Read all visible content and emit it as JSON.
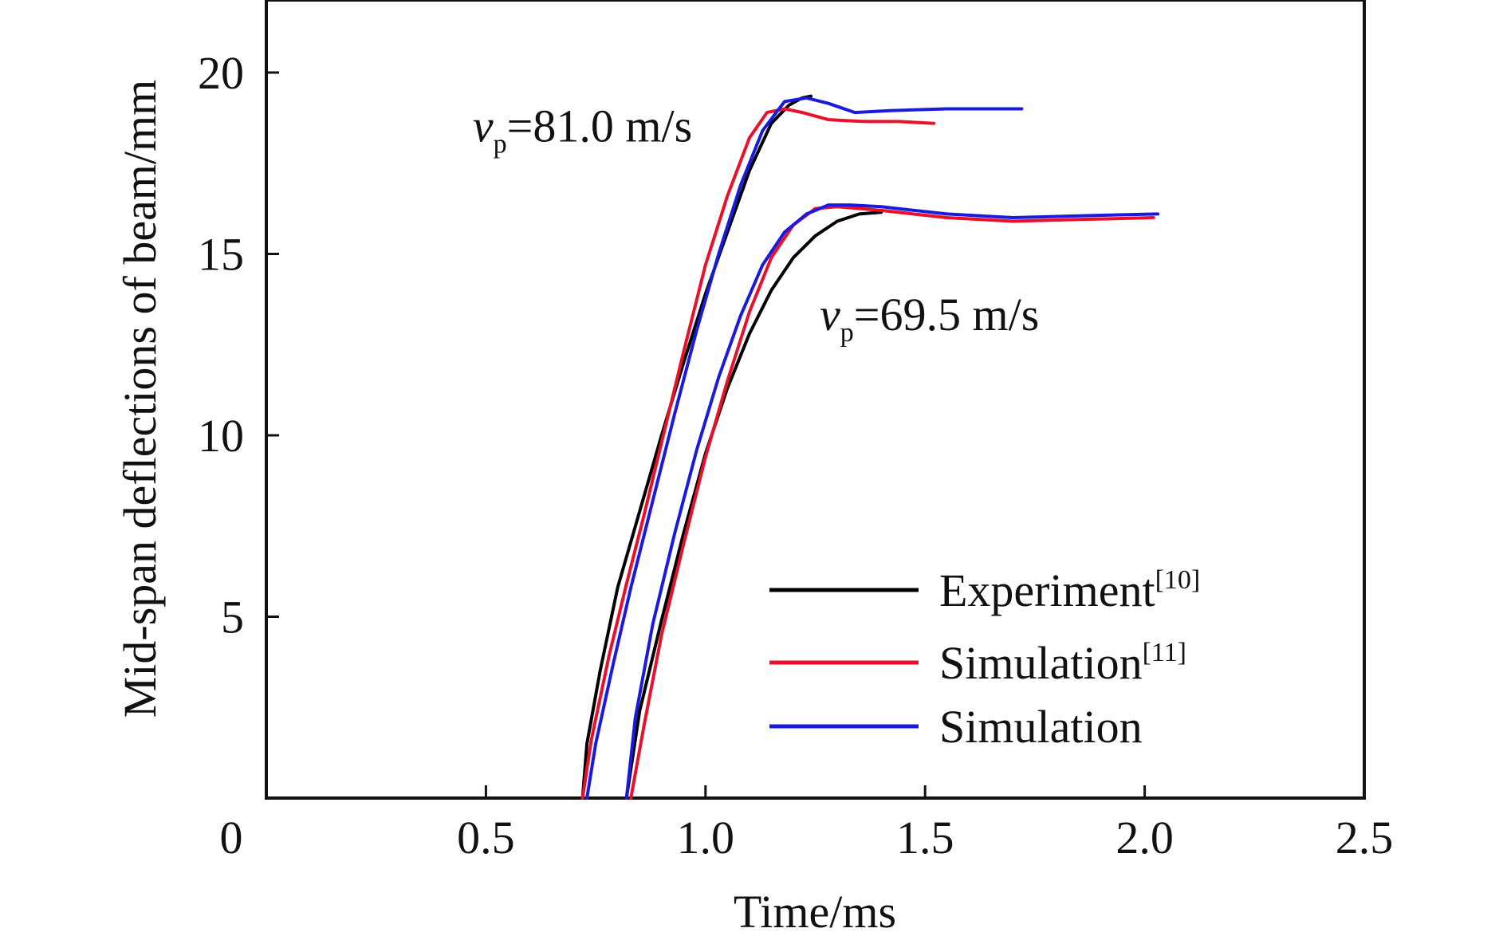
{
  "chart_data": {
    "type": "line",
    "title": "",
    "xlabel": "Time/ms",
    "ylabel": "Mid-span deflections of beam/mm",
    "xlim": [
      0,
      2.5
    ],
    "ylim": [
      0,
      22
    ],
    "grid": false,
    "x_ticks": [
      {
        "value": 0,
        "label": "0"
      },
      {
        "value": 0.5,
        "label": "0.5"
      },
      {
        "value": 1.0,
        "label": "1.0"
      },
      {
        "value": 1.5,
        "label": "1.5"
      },
      {
        "value": 2.0,
        "label": "2.0"
      },
      {
        "value": 2.5,
        "label": "2.5"
      }
    ],
    "y_ticks": [
      {
        "value": 5,
        "label": "5"
      },
      {
        "value": 10,
        "label": "10"
      },
      {
        "value": 15,
        "label": "15"
      },
      {
        "value": 20,
        "label": "20"
      }
    ],
    "legend": {
      "placement": "bottom-right",
      "entries": [
        {
          "name": "Experiment",
          "ref": "[10]",
          "color": "#000000"
        },
        {
          "name": "Simulation",
          "ref": "[11]",
          "color": "#e8102a"
        },
        {
          "name": "Simulation",
          "ref": "",
          "color": "#1a1adc"
        }
      ]
    },
    "annotations": [
      {
        "var": "v",
        "sub": "p",
        "text": "=81.0 m/s",
        "x": 0.47,
        "y": 18.1
      },
      {
        "var": "v",
        "sub": "p",
        "text": "=69.5 m/s",
        "x": 1.26,
        "y": 12.9
      }
    ],
    "series": [
      {
        "name": "Experiment v=81.0",
        "legend": "Experiment[10]",
        "color": "#000000",
        "x": [
          0.72,
          0.73,
          0.76,
          0.8,
          0.85,
          0.9,
          0.95,
          1.0,
          1.05,
          1.1,
          1.15,
          1.19,
          1.22,
          1.24
        ],
        "y": [
          0.0,
          1.5,
          3.5,
          5.8,
          7.9,
          10.0,
          12.0,
          13.9,
          15.6,
          17.3,
          18.6,
          19.1,
          19.3,
          19.35
        ]
      },
      {
        "name": "Simulation[11] v=81.0",
        "legend": "Simulation[11]",
        "color": "#e8102a",
        "x": [
          0.72,
          0.74,
          0.78,
          0.82,
          0.86,
          0.9,
          0.95,
          1.0,
          1.05,
          1.1,
          1.14,
          1.18,
          1.22,
          1.28,
          1.36,
          1.44,
          1.52
        ],
        "y": [
          0.0,
          1.6,
          3.9,
          5.9,
          7.8,
          9.8,
          12.3,
          14.7,
          16.6,
          18.2,
          18.9,
          19.0,
          18.9,
          18.7,
          18.65,
          18.65,
          18.6
        ]
      },
      {
        "name": "Simulation v=81.0",
        "legend": "Simulation",
        "color": "#1a1adc",
        "x": [
          0.73,
          0.75,
          0.79,
          0.83,
          0.88,
          0.93,
          0.98,
          1.03,
          1.08,
          1.13,
          1.18,
          1.23,
          1.28,
          1.34,
          1.42,
          1.55,
          1.72
        ],
        "y": [
          0.0,
          1.5,
          3.7,
          5.8,
          8.2,
          10.6,
          12.9,
          15.0,
          16.9,
          18.4,
          19.2,
          19.3,
          19.15,
          18.9,
          18.95,
          19.0,
          19.0
        ]
      },
      {
        "name": "Experiment v=69.5",
        "legend": "Experiment[10]",
        "color": "#000000",
        "x": [
          0.82,
          0.85,
          0.9,
          0.95,
          1.0,
          1.05,
          1.1,
          1.15,
          1.2,
          1.25,
          1.3,
          1.35,
          1.4
        ],
        "y": [
          0.0,
          2.4,
          4.9,
          7.3,
          9.5,
          11.3,
          12.8,
          14.0,
          14.9,
          15.5,
          15.9,
          16.1,
          16.15
        ]
      },
      {
        "name": "Simulation[11] v=69.5",
        "legend": "Simulation[11]",
        "color": "#e8102a",
        "x": [
          0.83,
          0.86,
          0.9,
          0.95,
          1.0,
          1.05,
          1.1,
          1.15,
          1.2,
          1.25,
          1.3,
          1.4,
          1.55,
          1.7,
          1.85,
          2.02
        ],
        "y": [
          0.0,
          2.0,
          4.5,
          7.0,
          9.4,
          11.5,
          13.4,
          14.9,
          15.8,
          16.25,
          16.3,
          16.2,
          16.0,
          15.9,
          15.95,
          16.0
        ]
      },
      {
        "name": "Simulation v=69.5",
        "legend": "Simulation",
        "color": "#1a1adc",
        "x": [
          0.82,
          0.84,
          0.88,
          0.93,
          0.98,
          1.03,
          1.08,
          1.13,
          1.18,
          1.23,
          1.28,
          1.33,
          1.4,
          1.55,
          1.7,
          1.85,
          2.03
        ],
        "y": [
          0.0,
          2.2,
          4.8,
          7.3,
          9.6,
          11.6,
          13.3,
          14.7,
          15.6,
          16.1,
          16.35,
          16.35,
          16.3,
          16.1,
          16.0,
          16.05,
          16.1
        ]
      }
    ]
  }
}
